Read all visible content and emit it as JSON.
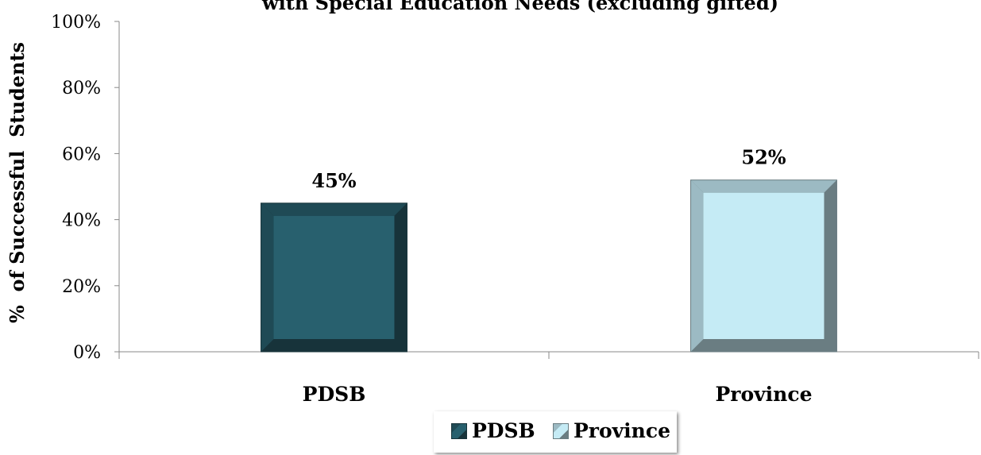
{
  "chart_data": {
    "type": "bar",
    "title": "with Special Education Needs (excluding gifted)",
    "ylabel": "%  of Successful  Students",
    "xlabel": "",
    "categories": [
      "PDSB",
      "Province"
    ],
    "values": [
      45,
      52
    ],
    "data_labels": [
      "45%",
      "52%"
    ],
    "ylim": [
      0,
      100
    ],
    "yticks": [
      "0%",
      "20%",
      "40%",
      "60%",
      "80%",
      "100%"
    ],
    "grid": false,
    "legend": {
      "placement": "bottom",
      "entries": [
        "PDSB",
        "Province"
      ]
    },
    "colors": {
      "PDSB": {
        "face": "#28606e",
        "dark": "#17333a",
        "mid": "#1f4a55"
      },
      "Province": {
        "face": "#c5ebf5",
        "dark": "#6a7d82",
        "mid": "#9cbac3"
      },
      "axis": "#888888"
    }
  }
}
